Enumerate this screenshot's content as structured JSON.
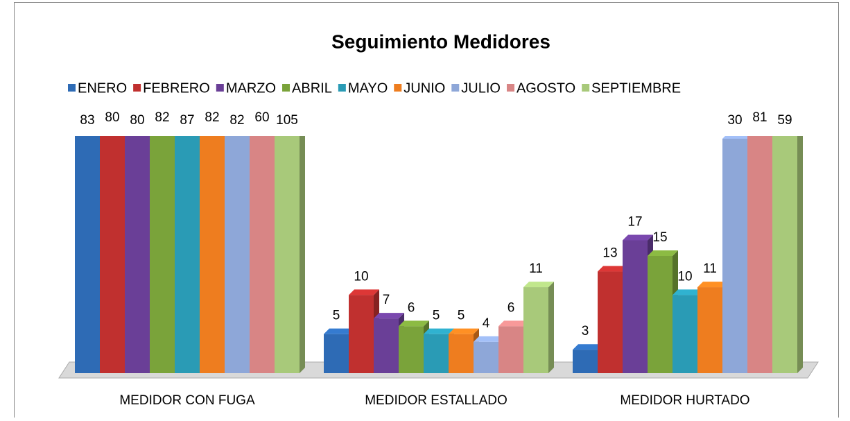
{
  "chart_data": {
    "type": "bar3d",
    "title": "Seguimiento Medidores",
    "categories": [
      "MEDIDOR CON FUGA",
      "MEDIDOR ESTALLADO",
      "MEDIDOR HURTADO"
    ],
    "ylim": [
      0,
      30
    ],
    "series": [
      {
        "name": "ENERO",
        "color": "#2e6bb5",
        "values": [
          83,
          5,
          3
        ]
      },
      {
        "name": "FEBRERO",
        "color": "#c0302f",
        "values": [
          80,
          10,
          13
        ]
      },
      {
        "name": "MARZO",
        "color": "#6a3f97",
        "values": [
          80,
          7,
          17
        ]
      },
      {
        "name": "ABRIL",
        "color": "#7aa33a",
        "values": [
          82,
          6,
          15
        ]
      },
      {
        "name": "MAYO",
        "color": "#2a9bb5",
        "values": [
          87,
          5,
          10
        ]
      },
      {
        "name": "JUNIO",
        "color": "#ee7d1f",
        "values": [
          82,
          5,
          11
        ]
      },
      {
        "name": "JULIO",
        "color": "#8ea7d8",
        "values": [
          82,
          4,
          30
        ]
      },
      {
        "name": "AGOSTO",
        "color": "#d88585",
        "values": [
          60,
          6,
          81
        ]
      },
      {
        "name": "SEPTIEMBRE",
        "color": "#a8c97a",
        "values": [
          105,
          11,
          59
        ]
      }
    ]
  }
}
